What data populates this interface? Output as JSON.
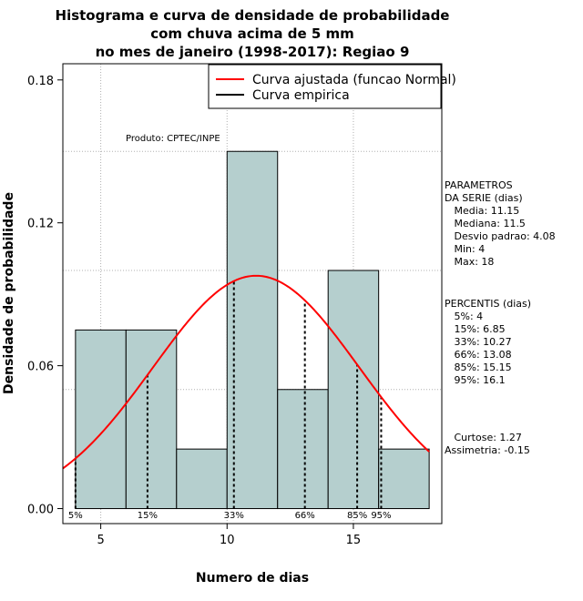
{
  "chart_data": {
    "type": "bar",
    "title_lines": [
      "Histograma e curva de densidade de probabilidade",
      "com chuva acima de 5 mm",
      "no mes de janeiro (1998-2017): Regiao 9"
    ],
    "xlabel": "Numero de dias",
    "ylabel": "Densidade de probabilidade",
    "xlim": [
      3.5,
      18.5
    ],
    "ylim": [
      -0.0063,
      0.1868
    ],
    "x_ticks": [
      5,
      10,
      15
    ],
    "x_tick_labels": [
      "5",
      "10",
      "15"
    ],
    "y_ticks": [
      0,
      0.06,
      0.12,
      0.18
    ],
    "y_tick_labels": [
      "0.00",
      "0.06",
      "0.12",
      "0.18"
    ],
    "grid_y": [
      0.05,
      0.1,
      0.15
    ],
    "bins": [
      {
        "x0": 4,
        "x1": 6,
        "density": 0.075
      },
      {
        "x0": 6,
        "x1": 8,
        "density": 0.075
      },
      {
        "x0": 8,
        "x1": 10,
        "density": 0.025
      },
      {
        "x0": 10,
        "x1": 12,
        "density": 0.15
      },
      {
        "x0": 12,
        "x1": 14,
        "density": 0.05
      },
      {
        "x0": 14,
        "x1": 16,
        "density": 0.1
      },
      {
        "x0": 16,
        "x1": 18,
        "density": 0.025
      }
    ],
    "normal_fit": {
      "mean": 11.15,
      "sd": 4.08,
      "x_from": 3.5,
      "x_to": 18.0
    },
    "percentile_lines": [
      {
        "label": "5%",
        "value": 4
      },
      {
        "label": "15%",
        "value": 6.85
      },
      {
        "label": "33%",
        "value": 10.27
      },
      {
        "label": "66%",
        "value": 13.08
      },
      {
        "label": "85%",
        "value": 15.15
      },
      {
        "label": "95%",
        "value": 16.1
      }
    ],
    "legend": [
      {
        "label": "Curva ajustada (funcao Normal)",
        "color": "#ff0000"
      },
      {
        "label": "Curva empirica",
        "color": "#000000"
      }
    ],
    "annotation": "Produto: CPTEC/INPE",
    "params_block": [
      "PARAMETROS",
      "DA SERIE (dias)",
      "   Media: 11.15",
      "   Mediana: 11.5",
      "   Desvio padrao: 4.08",
      "   Min: 4",
      "   Max: 18"
    ],
    "percentis_block": [
      "PERCENTIS (dias)",
      "   5%: 4",
      "   15%: 6.85",
      "   33%: 10.27",
      "   66%: 13.08",
      "   85%: 15.15",
      "   95%: 16.1"
    ],
    "shape_block": [
      "   Curtose: 1.27",
      "Assimetria: -0.15"
    ],
    "colors": {
      "bar_fill": "#b5cfce",
      "bar_stroke": "#000000",
      "curve": "#ff0000",
      "grid": "#b0b0b0"
    }
  }
}
